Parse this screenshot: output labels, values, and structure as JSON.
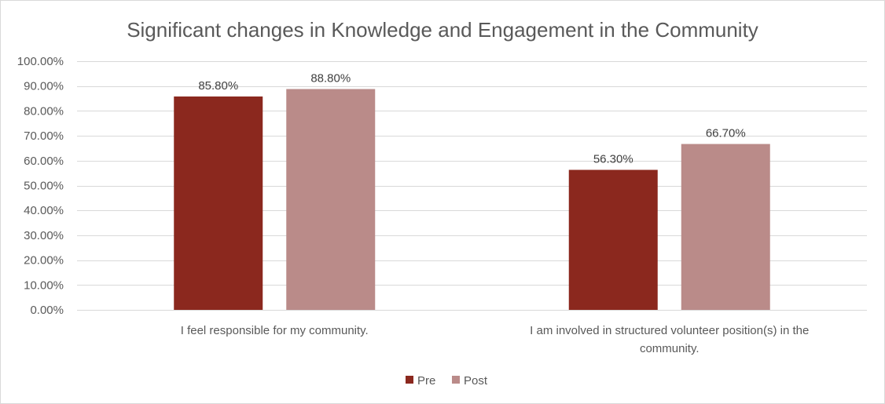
{
  "chart_data": {
    "type": "bar",
    "title": "Significant changes in Knowledge and Engagement in the Community",
    "categories": [
      [
        "I feel responsible for my community."
      ],
      [
        "I am involved in structured volunteer position(s) in the",
        "community."
      ]
    ],
    "series": [
      {
        "name": "Pre",
        "color": "#8B281E",
        "values": [
          85.8,
          56.3
        ],
        "labels": [
          "85.80%",
          "56.30%"
        ]
      },
      {
        "name": "Post",
        "color": "#BA8B89",
        "values": [
          88.8,
          66.7
        ],
        "labels": [
          "88.80%",
          "66.70%"
        ]
      }
    ],
    "ylim": [
      0,
      100
    ],
    "yticks": [
      0,
      10,
      20,
      30,
      40,
      50,
      60,
      70,
      80,
      90,
      100
    ],
    "ytick_labels": [
      "0.00%",
      "10.00%",
      "20.00%",
      "30.00%",
      "40.00%",
      "50.00%",
      "60.00%",
      "70.00%",
      "80.00%",
      "90.00%",
      "100.00%"
    ],
    "grid": true,
    "gridline_color": "#d9d9d9",
    "legend_position": "bottom",
    "xlabel": "",
    "ylabel": ""
  }
}
